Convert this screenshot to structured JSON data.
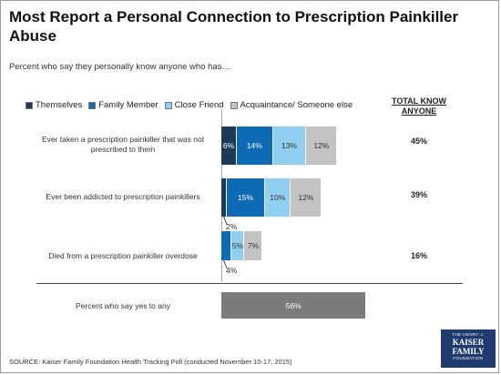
{
  "title": "Most Report a Personal Connection to Prescription Painkiller Abuse",
  "subtitle": "Percent who say they personally know anyone who has…",
  "total_header": "TOTAL KNOW ANYONE",
  "source": "SOURCE: Kaiser Family Foundation Health Tracking Poll (conducted November 10-17, 2015)",
  "logo": {
    "line1": "THE HENRY J.",
    "line2": "KAISER",
    "line3": "FAMILY",
    "line4": "FOUNDATION"
  },
  "colors": {
    "Themselves": "#1b3a5c",
    "Family Member": "#0d6bb6",
    "Close Friend": "#8fd0f2",
    "Acquaintance/ Someone else": "#c3c3c3",
    "Any": "#7b7b7b"
  },
  "chart_data": {
    "type": "bar",
    "orientation": "horizontal",
    "stacked": true,
    "categories": [
      "Ever taken a prescription painkiller that was not prescribed to them",
      "Ever been addicted to prescription painkillers",
      "Died from a prescription painkiller overdose"
    ],
    "series": [
      {
        "name": "Themselves",
        "values": [
          6,
          2,
          null
        ],
        "labels": [
          "6%",
          "2%",
          ""
        ]
      },
      {
        "name": "Family Member",
        "values": [
          14,
          15,
          4
        ],
        "labels": [
          "14%",
          "15%",
          "4%"
        ]
      },
      {
        "name": "Close Friend",
        "values": [
          13,
          10,
          5
        ],
        "labels": [
          "13%",
          "10%",
          "5%"
        ]
      },
      {
        "name": "Acquaintance/ Someone else",
        "values": [
          12,
          12,
          7
        ],
        "labels": [
          "12%",
          "12%",
          "7%"
        ]
      }
    ],
    "totals": [
      "45%",
      "39%",
      "16%"
    ],
    "any": {
      "category": "Percent who say yes to any",
      "value": 56,
      "label": "56%"
    },
    "legend_position": "top",
    "grid": false
  }
}
